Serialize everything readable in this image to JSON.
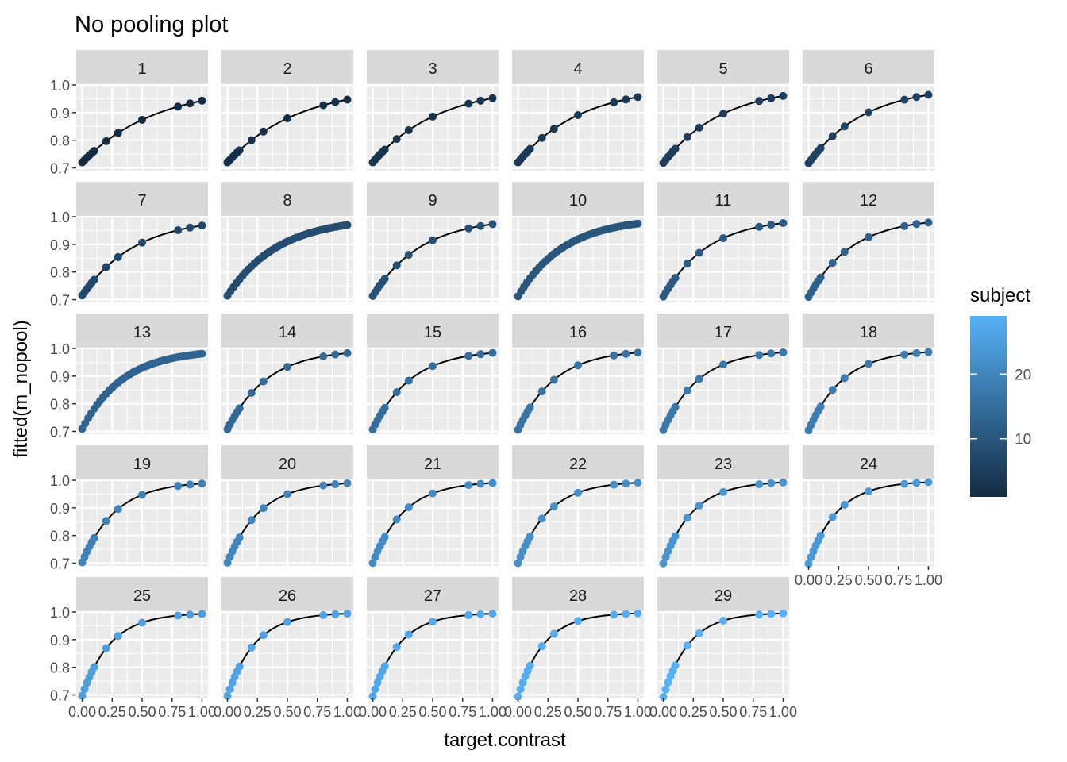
{
  "chart_data": {
    "type": "scatter",
    "title": "No pooling plot",
    "xlabel": "target.contrast",
    "ylabel": "fitted(m_nopool)",
    "xlim": [
      0,
      1
    ],
    "ylim": [
      0.69,
      1.0
    ],
    "x_ticks": [
      "0.00",
      "0.25",
      "0.50",
      "0.75",
      "1.00"
    ],
    "y_ticks": [
      "0.7",
      "0.8",
      "0.9",
      "1.0"
    ],
    "grid": true,
    "facet_by": "subject",
    "facet_layout": "wrap, 6 columns",
    "panels": [
      {
        "label": "1",
        "subject": 1,
        "y0": 0.72,
        "y1": 0.943
      },
      {
        "label": "2",
        "subject": 2,
        "y0": 0.72,
        "y1": 0.947
      },
      {
        "label": "3",
        "subject": 3,
        "y0": 0.72,
        "y1": 0.952
      },
      {
        "label": "4",
        "subject": 4,
        "y0": 0.72,
        "y1": 0.956
      },
      {
        "label": "5",
        "subject": 5,
        "y0": 0.718,
        "y1": 0.96
      },
      {
        "label": "6",
        "subject": 6,
        "y0": 0.717,
        "y1": 0.964
      },
      {
        "label": "7",
        "subject": 7,
        "y0": 0.715,
        "y1": 0.968
      },
      {
        "label": "8",
        "subject": 8,
        "y0": 0.714,
        "y1": 0.97
      },
      {
        "label": "9",
        "subject": 9,
        "y0": 0.713,
        "y1": 0.973
      },
      {
        "label": "10",
        "subject": 10,
        "y0": 0.712,
        "y1": 0.975
      },
      {
        "label": "11",
        "subject": 11,
        "y0": 0.711,
        "y1": 0.977
      },
      {
        "label": "12",
        "subject": 12,
        "y0": 0.71,
        "y1": 0.979
      },
      {
        "label": "13",
        "subject": 13,
        "y0": 0.709,
        "y1": 0.981
      },
      {
        "label": "14",
        "subject": 14,
        "y0": 0.708,
        "y1": 0.983
      },
      {
        "label": "15",
        "subject": 15,
        "y0": 0.707,
        "y1": 0.984
      },
      {
        "label": "16",
        "subject": 16,
        "y0": 0.706,
        "y1": 0.985
      },
      {
        "label": "17",
        "subject": 17,
        "y0": 0.705,
        "y1": 0.986
      },
      {
        "label": "18",
        "subject": 18,
        "y0": 0.704,
        "y1": 0.987
      },
      {
        "label": "19",
        "subject": 19,
        "y0": 0.703,
        "y1": 0.988
      },
      {
        "label": "20",
        "subject": 20,
        "y0": 0.702,
        "y1": 0.989
      },
      {
        "label": "21",
        "subject": 21,
        "y0": 0.701,
        "y1": 0.99
      },
      {
        "label": "22",
        "subject": 22,
        "y0": 0.7,
        "y1": 0.991
      },
      {
        "label": "23",
        "subject": 23,
        "y0": 0.699,
        "y1": 0.992
      },
      {
        "label": "24",
        "subject": 24,
        "y0": 0.698,
        "y1": 0.993
      },
      {
        "label": "25",
        "subject": 25,
        "y0": 0.697,
        "y1": 0.993
      },
      {
        "label": "26",
        "subject": 26,
        "y0": 0.696,
        "y1": 0.994
      },
      {
        "label": "27",
        "subject": 27,
        "y0": 0.695,
        "y1": 0.994
      },
      {
        "label": "28",
        "subject": 28,
        "y0": 0.694,
        "y1": 0.995
      },
      {
        "label": "29",
        "subject": 29,
        "y0": 0.693,
        "y1": 0.995
      }
    ],
    "point_x": [
      0.0,
      0.02,
      0.04,
      0.06,
      0.08,
      0.1,
      0.2,
      0.3,
      0.5,
      0.8,
      0.9,
      1.0
    ],
    "dense_panels": [
      "8",
      "10",
      "13"
    ],
    "legend": {
      "title": "subject",
      "position": "right",
      "ticks": [
        "10",
        "20"
      ],
      "range": [
        1,
        29
      ],
      "color_low": "#132B43",
      "color_high": "#56B1F7"
    },
    "colors": {
      "panel_bg": "#EBEBEB",
      "grid": "#FFFFFF",
      "strip_bg": "#D9D9D9",
      "line": "#000000",
      "axis_text": "#4D4D4D"
    }
  }
}
